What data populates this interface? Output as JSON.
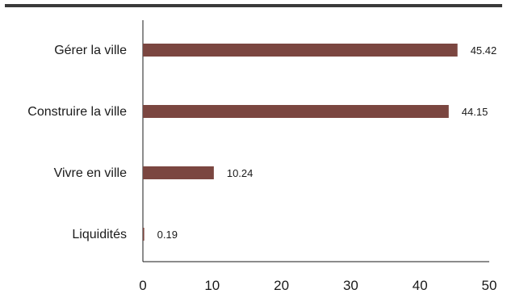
{
  "chart_data": {
    "type": "bar",
    "orientation": "horizontal",
    "categories": [
      "Gérer la ville",
      "Construire la ville",
      "Vivre en ville",
      "Liquidités"
    ],
    "values": [
      45.42,
      44.15,
      10.24,
      0.19
    ],
    "value_labels": [
      "45.42",
      "44.15",
      "10.24",
      "0.19"
    ],
    "xlim": [
      0,
      50
    ],
    "xticks": [
      0,
      10,
      20,
      30,
      40,
      50
    ],
    "title": "",
    "xlabel": "",
    "ylabel": "",
    "grid": false,
    "legend": "none",
    "colors": {
      "bar": "#7b4640",
      "top_rule": "#3a3a3a",
      "axis": "#1a1a1a"
    }
  }
}
